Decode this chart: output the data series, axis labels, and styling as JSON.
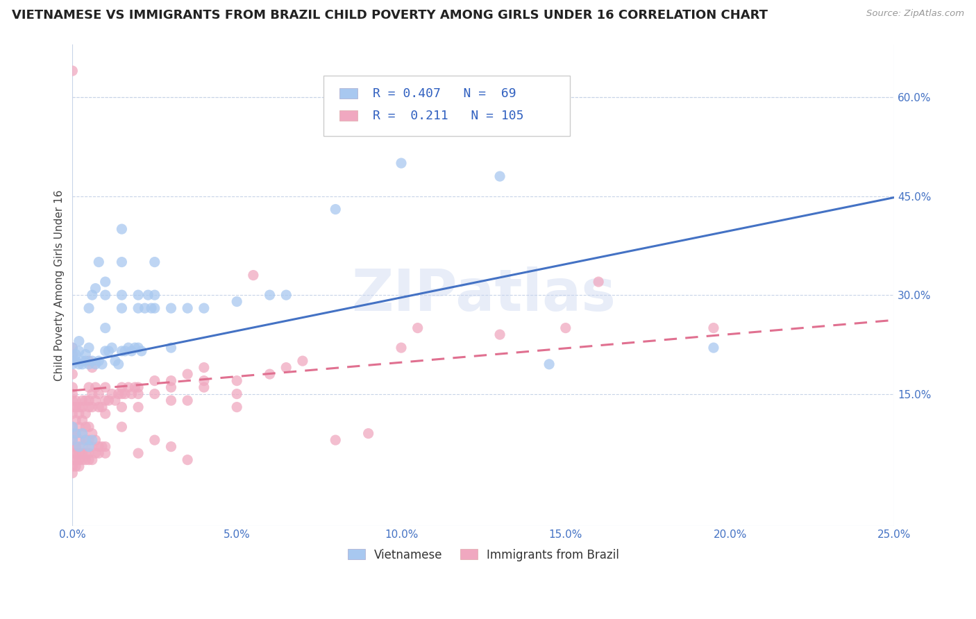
{
  "title": "VIETNAMESE VS IMMIGRANTS FROM BRAZIL CHILD POVERTY AMONG GIRLS UNDER 16 CORRELATION CHART",
  "source": "Source: ZipAtlas.com",
  "ylabel": "Child Poverty Among Girls Under 16",
  "xlim": [
    0.0,
    0.25
  ],
  "ylim": [
    -0.05,
    0.68
  ],
  "xtick_labels": [
    "0.0%",
    "5.0%",
    "10.0%",
    "15.0%",
    "20.0%",
    "25.0%"
  ],
  "xtick_values": [
    0.0,
    0.05,
    0.1,
    0.15,
    0.2,
    0.25
  ],
  "ytick_labels": [
    "15.0%",
    "30.0%",
    "45.0%",
    "60.0%"
  ],
  "ytick_values": [
    0.15,
    0.3,
    0.45,
    0.6
  ],
  "watermark": "ZIPatlas",
  "vietnamese_color": "#a8c8f0",
  "brazil_color": "#f0a8c0",
  "vietnamese_line_color": "#4472c4",
  "brazil_line_color": "#e07090",
  "title_fontsize": 13,
  "axis_label_fontsize": 11,
  "tick_fontsize": 11,
  "background_color": "#ffffff",
  "grid_color": "#c8d4e8",
  "viet_line_x": [
    0.0,
    0.25
  ],
  "viet_line_y": [
    0.195,
    0.448
  ],
  "brazil_line_x": [
    0.0,
    0.25
  ],
  "brazil_line_y": [
    0.155,
    0.262
  ],
  "vietnamese_scatter": [
    [
      0.0,
      0.195
    ],
    [
      0.0,
      0.205
    ],
    [
      0.0,
      0.22
    ],
    [
      0.001,
      0.21
    ],
    [
      0.001,
      0.2
    ],
    [
      0.002,
      0.195
    ],
    [
      0.002,
      0.215
    ],
    [
      0.002,
      0.23
    ],
    [
      0.003,
      0.2
    ],
    [
      0.003,
      0.195
    ],
    [
      0.004,
      0.2
    ],
    [
      0.004,
      0.21
    ],
    [
      0.005,
      0.22
    ],
    [
      0.005,
      0.195
    ],
    [
      0.005,
      0.28
    ],
    [
      0.006,
      0.2
    ],
    [
      0.006,
      0.3
    ],
    [
      0.007,
      0.195
    ],
    [
      0.007,
      0.31
    ],
    [
      0.008,
      0.2
    ],
    [
      0.008,
      0.35
    ],
    [
      0.009,
      0.195
    ],
    [
      0.01,
      0.215
    ],
    [
      0.01,
      0.25
    ],
    [
      0.01,
      0.3
    ],
    [
      0.01,
      0.32
    ],
    [
      0.011,
      0.215
    ],
    [
      0.012,
      0.22
    ],
    [
      0.013,
      0.2
    ],
    [
      0.014,
      0.195
    ],
    [
      0.015,
      0.215
    ],
    [
      0.015,
      0.28
    ],
    [
      0.015,
      0.3
    ],
    [
      0.015,
      0.35
    ],
    [
      0.015,
      0.4
    ],
    [
      0.016,
      0.215
    ],
    [
      0.017,
      0.22
    ],
    [
      0.018,
      0.215
    ],
    [
      0.019,
      0.22
    ],
    [
      0.02,
      0.22
    ],
    [
      0.02,
      0.28
    ],
    [
      0.02,
      0.3
    ],
    [
      0.021,
      0.215
    ],
    [
      0.022,
      0.28
    ],
    [
      0.023,
      0.3
    ],
    [
      0.024,
      0.28
    ],
    [
      0.025,
      0.28
    ],
    [
      0.025,
      0.3
    ],
    [
      0.025,
      0.35
    ],
    [
      0.03,
      0.22
    ],
    [
      0.03,
      0.28
    ],
    [
      0.035,
      0.28
    ],
    [
      0.04,
      0.28
    ],
    [
      0.05,
      0.29
    ],
    [
      0.06,
      0.3
    ],
    [
      0.065,
      0.3
    ],
    [
      0.08,
      0.43
    ],
    [
      0.1,
      0.5
    ],
    [
      0.13,
      0.48
    ],
    [
      0.145,
      0.195
    ],
    [
      0.195,
      0.22
    ],
    [
      0.0,
      0.1
    ],
    [
      0.0,
      0.08
    ],
    [
      0.001,
      0.09
    ],
    [
      0.002,
      0.07
    ],
    [
      0.003,
      0.09
    ],
    [
      0.004,
      0.08
    ],
    [
      0.005,
      0.07
    ],
    [
      0.006,
      0.08
    ]
  ],
  "brazil_scatter": [
    [
      0.0,
      0.14
    ],
    [
      0.0,
      0.13
    ],
    [
      0.0,
      0.12
    ],
    [
      0.0,
      0.1
    ],
    [
      0.0,
      0.09
    ],
    [
      0.0,
      0.08
    ],
    [
      0.0,
      0.07
    ],
    [
      0.0,
      0.06
    ],
    [
      0.0,
      0.05
    ],
    [
      0.0,
      0.04
    ],
    [
      0.0,
      0.03
    ],
    [
      0.0,
      0.15
    ],
    [
      0.0,
      0.16
    ],
    [
      0.0,
      0.18
    ],
    [
      0.0,
      0.2
    ],
    [
      0.0,
      0.21
    ],
    [
      0.0,
      0.22
    ],
    [
      0.0,
      0.64
    ],
    [
      0.001,
      0.13
    ],
    [
      0.001,
      0.11
    ],
    [
      0.001,
      0.09
    ],
    [
      0.001,
      0.07
    ],
    [
      0.001,
      0.06
    ],
    [
      0.001,
      0.05
    ],
    [
      0.001,
      0.04
    ],
    [
      0.001,
      0.14
    ],
    [
      0.002,
      0.12
    ],
    [
      0.002,
      0.1
    ],
    [
      0.002,
      0.08
    ],
    [
      0.002,
      0.06
    ],
    [
      0.002,
      0.05
    ],
    [
      0.002,
      0.04
    ],
    [
      0.002,
      0.13
    ],
    [
      0.003,
      0.11
    ],
    [
      0.003,
      0.09
    ],
    [
      0.003,
      0.07
    ],
    [
      0.003,
      0.06
    ],
    [
      0.003,
      0.05
    ],
    [
      0.003,
      0.13
    ],
    [
      0.003,
      0.14
    ],
    [
      0.004,
      0.1
    ],
    [
      0.004,
      0.08
    ],
    [
      0.004,
      0.06
    ],
    [
      0.004,
      0.05
    ],
    [
      0.004,
      0.12
    ],
    [
      0.004,
      0.14
    ],
    [
      0.005,
      0.1
    ],
    [
      0.005,
      0.08
    ],
    [
      0.005,
      0.06
    ],
    [
      0.005,
      0.05
    ],
    [
      0.005,
      0.13
    ],
    [
      0.005,
      0.14
    ],
    [
      0.005,
      0.16
    ],
    [
      0.005,
      0.2
    ],
    [
      0.006,
      0.09
    ],
    [
      0.006,
      0.07
    ],
    [
      0.006,
      0.05
    ],
    [
      0.006,
      0.13
    ],
    [
      0.006,
      0.15
    ],
    [
      0.006,
      0.19
    ],
    [
      0.007,
      0.08
    ],
    [
      0.007,
      0.06
    ],
    [
      0.007,
      0.14
    ],
    [
      0.007,
      0.16
    ],
    [
      0.008,
      0.07
    ],
    [
      0.008,
      0.06
    ],
    [
      0.008,
      0.13
    ],
    [
      0.008,
      0.15
    ],
    [
      0.009,
      0.07
    ],
    [
      0.009,
      0.13
    ],
    [
      0.01,
      0.14
    ],
    [
      0.01,
      0.16
    ],
    [
      0.01,
      0.12
    ],
    [
      0.01,
      0.07
    ],
    [
      0.01,
      0.06
    ],
    [
      0.011,
      0.14
    ],
    [
      0.012,
      0.15
    ],
    [
      0.013,
      0.14
    ],
    [
      0.014,
      0.15
    ],
    [
      0.015,
      0.15
    ],
    [
      0.015,
      0.16
    ],
    [
      0.015,
      0.13
    ],
    [
      0.015,
      0.1
    ],
    [
      0.016,
      0.15
    ],
    [
      0.017,
      0.16
    ],
    [
      0.018,
      0.15
    ],
    [
      0.019,
      0.16
    ],
    [
      0.02,
      0.16
    ],
    [
      0.02,
      0.15
    ],
    [
      0.02,
      0.13
    ],
    [
      0.02,
      0.06
    ],
    [
      0.025,
      0.17
    ],
    [
      0.025,
      0.15
    ],
    [
      0.025,
      0.08
    ],
    [
      0.03,
      0.17
    ],
    [
      0.03,
      0.16
    ],
    [
      0.03,
      0.14
    ],
    [
      0.03,
      0.07
    ],
    [
      0.035,
      0.18
    ],
    [
      0.035,
      0.05
    ],
    [
      0.035,
      0.14
    ],
    [
      0.04,
      0.17
    ],
    [
      0.04,
      0.16
    ],
    [
      0.04,
      0.19
    ],
    [
      0.05,
      0.17
    ],
    [
      0.05,
      0.15
    ],
    [
      0.05,
      0.13
    ],
    [
      0.055,
      0.33
    ],
    [
      0.06,
      0.18
    ],
    [
      0.065,
      0.19
    ],
    [
      0.07,
      0.2
    ],
    [
      0.08,
      0.08
    ],
    [
      0.09,
      0.09
    ],
    [
      0.1,
      0.22
    ],
    [
      0.105,
      0.25
    ],
    [
      0.13,
      0.24
    ],
    [
      0.15,
      0.25
    ],
    [
      0.16,
      0.32
    ],
    [
      0.195,
      0.25
    ]
  ]
}
